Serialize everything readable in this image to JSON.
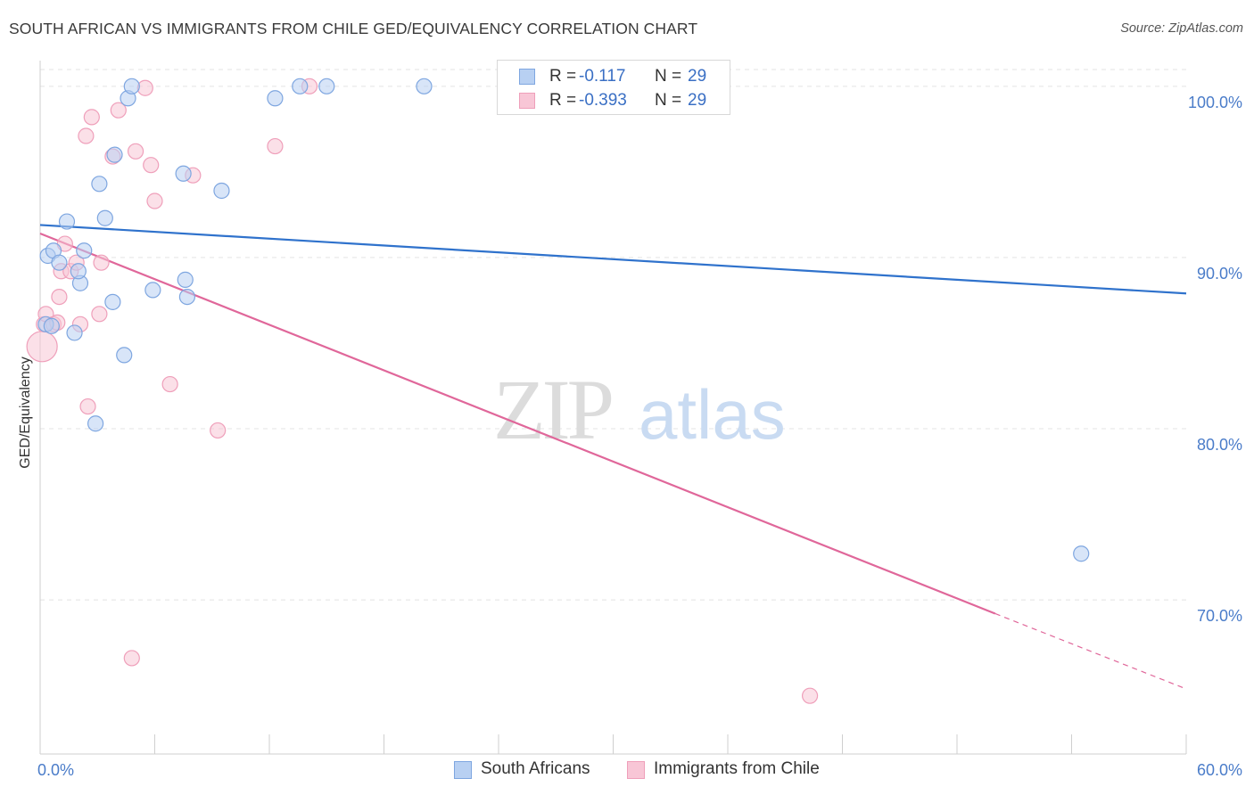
{
  "title": "SOUTH AFRICAN VS IMMIGRANTS FROM CHILE GED/EQUIVALENCY CORRELATION CHART",
  "source": "Source: ZipAtlas.com",
  "watermark": {
    "zip": "ZIP",
    "atlas": "atlas"
  },
  "colors": {
    "blue": "#2f72cc",
    "blue_fill": "#b8d0f2",
    "blue_stroke": "#7ea6e0",
    "pink": "#e0679a",
    "pink_fill": "#f8c6d6",
    "pink_stroke": "#ef9fba",
    "grid": "#e3e3e3",
    "tick_text": "#4a7cc9"
  },
  "legend_top": [
    {
      "r_label": "R =",
      "r_value": "-0.117",
      "n_label": "N =",
      "n_value": "29"
    },
    {
      "r_label": "R =",
      "r_value": "-0.393",
      "n_label": "N =",
      "n_value": "29"
    }
  ],
  "legend_bottom": [
    "South Africans",
    "Immigrants from Chile"
  ],
  "chart_data": {
    "type": "scatter",
    "title": "SOUTH AFRICAN VS IMMIGRANTS FROM CHILE GED/EQUIVALENCY CORRELATION CHART",
    "xlabel": "",
    "ylabel": "GED/Equivalency",
    "xlim": [
      0,
      60
    ],
    "ylim": [
      61.0,
      101.5
    ],
    "x_tick_labels": [
      "0.0%",
      "60.0%"
    ],
    "y_ticks": [
      70,
      80,
      90,
      100
    ],
    "y_tick_labels": [
      "70.0%",
      "80.0%",
      "90.0%",
      "100.0%"
    ],
    "grid": true,
    "legend_placement": "top-center",
    "series": [
      {
        "name": "South Africans",
        "points": [
          [
            0.3,
            86.1
          ],
          [
            0.4,
            90.1
          ],
          [
            0.7,
            90.4
          ],
          [
            1.0,
            89.7
          ],
          [
            1.4,
            92.1
          ],
          [
            1.8,
            85.6
          ],
          [
            2.1,
            88.5
          ],
          [
            2.3,
            90.4
          ],
          [
            2.9,
            80.3
          ],
          [
            3.1,
            94.3
          ],
          [
            3.4,
            92.3
          ],
          [
            3.8,
            87.4
          ],
          [
            3.9,
            96.0
          ],
          [
            4.4,
            84.3
          ],
          [
            4.6,
            99.3
          ],
          [
            4.8,
            100.0
          ],
          [
            5.9,
            88.1
          ],
          [
            7.5,
            94.9
          ],
          [
            7.6,
            88.7
          ],
          [
            7.7,
            87.7
          ],
          [
            9.5,
            93.9
          ],
          [
            12.3,
            99.3
          ],
          [
            13.6,
            100.0
          ],
          [
            15.0,
            100.0
          ],
          [
            20.1,
            100.0
          ],
          [
            33.3,
            100.0
          ],
          [
            54.5,
            72.7
          ],
          [
            0.6,
            86.0
          ],
          [
            2.0,
            89.2
          ]
        ],
        "trend": {
          "x": [
            0,
            60
          ],
          "y": [
            91.9,
            87.9
          ]
        }
      },
      {
        "name": "Immigrants from Chile",
        "points": [
          [
            0.1,
            84.8
          ],
          [
            0.2,
            86.1
          ],
          [
            0.3,
            86.7
          ],
          [
            0.7,
            86.1
          ],
          [
            1.0,
            87.7
          ],
          [
            1.1,
            89.2
          ],
          [
            1.3,
            90.8
          ],
          [
            1.6,
            89.2
          ],
          [
            1.9,
            89.7
          ],
          [
            2.1,
            86.1
          ],
          [
            2.4,
            97.1
          ],
          [
            2.5,
            81.3
          ],
          [
            2.7,
            98.2
          ],
          [
            3.1,
            86.7
          ],
          [
            3.2,
            89.7
          ],
          [
            3.8,
            95.9
          ],
          [
            4.1,
            98.6
          ],
          [
            4.8,
            66.6
          ],
          [
            5.0,
            96.2
          ],
          [
            5.5,
            99.9
          ],
          [
            5.8,
            95.4
          ],
          [
            6.0,
            93.3
          ],
          [
            6.8,
            82.6
          ],
          [
            8.0,
            94.8
          ],
          [
            9.3,
            79.9
          ],
          [
            12.3,
            96.5
          ],
          [
            14.1,
            100.0
          ],
          [
            40.3,
            64.4
          ],
          [
            0.9,
            86.2
          ]
        ],
        "trend": {
          "x": [
            0,
            50
          ],
          "y": [
            91.4,
            69.2
          ]
        },
        "trend_dashed": {
          "x": [
            50,
            60
          ],
          "y": [
            69.2,
            64.8
          ]
        }
      }
    ]
  }
}
